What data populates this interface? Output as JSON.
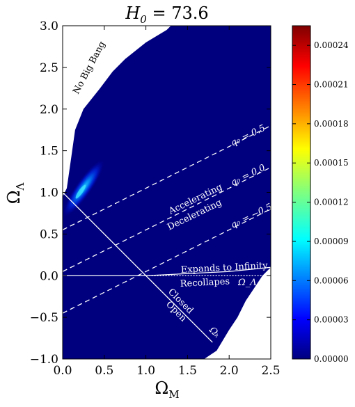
{
  "chart_data": {
    "type": "heatmap",
    "title": "H₀ = 73.6",
    "title_base": "H",
    "title_sub": "0",
    "title_rest": " = 73.6",
    "xlabel_base": "Ω",
    "xlabel_sub": "M",
    "ylabel_base": "Ω",
    "ylabel_sub": "Λ",
    "xlim": [
      0,
      2.5
    ],
    "ylim": [
      -1,
      3
    ],
    "xticks": [
      0.0,
      0.5,
      1.0,
      1.5,
      2.0,
      2.5
    ],
    "xtick_labels": [
      "0.0",
      "0.5",
      "1.0",
      "1.5",
      "2.0",
      "2.5"
    ],
    "yticks": [
      -1.0,
      -0.5,
      0.0,
      0.5,
      1.0,
      1.5,
      2.0,
      2.5,
      3.0
    ],
    "ytick_labels": [
      "−1.0",
      "−0.5",
      "0.0",
      "0.5",
      "1.0",
      "1.5",
      "2.0",
      "2.5",
      "3.0"
    ],
    "colorbar": {
      "range": [
        0,
        0.000255
      ],
      "ticks": [
        0,
        3e-05,
        6e-05,
        9e-05,
        0.00012,
        0.00015,
        0.00018,
        0.00021,
        0.00024
      ],
      "tick_labels": [
        "0.00000",
        "0.00003",
        "0.00006",
        "0.00009",
        "0.00012",
        "0.00015",
        "0.00018",
        "0.00021",
        "0.00024"
      ],
      "colormap": "jet"
    },
    "region": {
      "left_boundary": [
        [
          0.0,
          -1.0
        ],
        [
          0.0,
          0.95
        ],
        [
          0.05,
          1.05
        ],
        [
          0.1,
          1.4
        ],
        [
          0.15,
          1.75
        ],
        [
          0.25,
          2.0
        ],
        [
          0.45,
          2.25
        ],
        [
          0.6,
          2.45
        ],
        [
          0.75,
          2.6
        ],
        [
          1.0,
          2.8
        ],
        [
          1.25,
          2.95
        ],
        [
          1.3,
          3.0
        ]
      ],
      "right_boundary": [
        [
          1.7,
          -1.0
        ],
        [
          1.85,
          -0.9
        ],
        [
          2.0,
          -0.65
        ],
        [
          2.1,
          -0.5
        ],
        [
          2.2,
          -0.3
        ],
        [
          2.3,
          -0.15
        ],
        [
          2.4,
          0.0
        ],
        [
          2.5,
          0.1
        ]
      ],
      "background_value": 0
    },
    "peak": {
      "center": [
        0.25,
        1.05
      ],
      "value": 0.000105,
      "angle_deg": 55
    },
    "deceleration_lines": [
      {
        "q0": 0.5,
        "label": "q₀ = 0.5",
        "slope": 0.5,
        "intercept": 0.55
      },
      {
        "q0": 0.0,
        "label": "q₀ = 0.0",
        "slope": 0.5,
        "intercept": 0.05
      },
      {
        "q0": -0.5,
        "label": "q₀ = −0.5",
        "slope": 0.5,
        "intercept": -0.45
      }
    ],
    "flat_line": {
      "points": [
        [
          0.0,
          1.0
        ],
        [
          1.8,
          -0.8
        ]
      ],
      "label": "Ωₖ = 0"
    },
    "recollapse_line": {
      "points": [
        [
          0.0,
          0.0
        ],
        [
          1.0,
          0.0
        ],
        [
          2.0,
          0.05
        ],
        [
          2.5,
          0.1
        ]
      ],
      "label": "Ω_Λ = 0"
    },
    "annotations": {
      "no_big_bang": "No Big Bang",
      "accelerating": "Accelerating",
      "decelerating": "Decelerating",
      "expands": "Expands to Infinity",
      "recollapses": "Recollapes",
      "omega_lambda_zero": "Ω_Λ = 0",
      "closed": "Closed",
      "open": "Open",
      "omega_k": "Ωₖ"
    }
  }
}
